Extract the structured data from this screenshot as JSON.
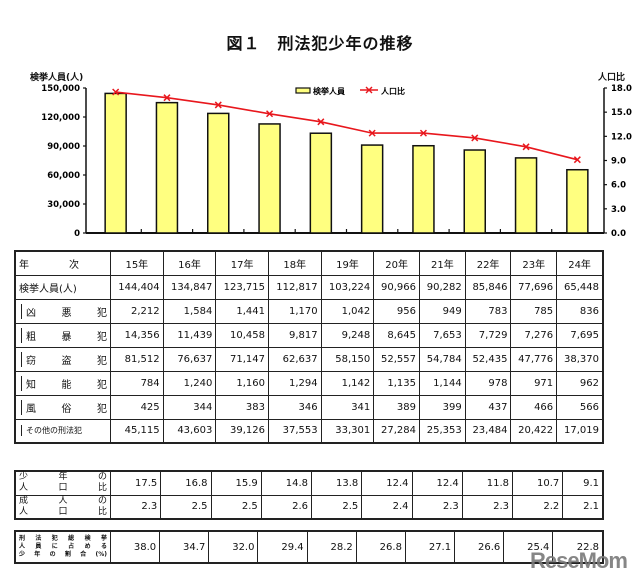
{
  "title": "図１　刑法犯少年の推移",
  "axes": {
    "left_label": "検挙人員(人)",
    "right_label": "人口比",
    "left_ticks": [
      "150,000",
      "120,000",
      "90,000",
      "60,000",
      "30,000",
      "0"
    ],
    "right_ticks": [
      "18.0",
      "15.0",
      "12.0",
      "9.0",
      "6.0",
      "3.0",
      "0.0"
    ]
  },
  "legend": {
    "bar_label": "検挙人員",
    "line_label": "人口比"
  },
  "colors": {
    "bar_fill": "#FFFF80",
    "bar_stroke": "#111111",
    "line": "#E8171D"
  },
  "chart_data": {
    "type": "bar",
    "title": "図１　刑法犯少年の推移",
    "categories": [
      "15年",
      "16年",
      "17年",
      "18年",
      "19年",
      "20年",
      "21年",
      "22年",
      "23年",
      "24年"
    ],
    "series": [
      {
        "name": "検挙人員",
        "type": "bar",
        "axis": "left",
        "values": [
          144404,
          134847,
          123715,
          112817,
          103224,
          90966,
          90282,
          85846,
          77696,
          65448
        ]
      },
      {
        "name": "人口比",
        "type": "line",
        "axis": "right",
        "values": [
          17.5,
          16.8,
          15.9,
          14.8,
          13.8,
          12.4,
          12.4,
          11.8,
          10.7,
          9.1
        ]
      }
    ],
    "xlabel": "",
    "ylabel": "検挙人員(人)",
    "y2label": "人口比",
    "ylim": [
      0,
      150000
    ],
    "y2lim": [
      0,
      18
    ],
    "legend_position": "top-center",
    "grid": false
  },
  "table": {
    "header_label": "年　　　　次",
    "years": [
      "15年",
      "16年",
      "17年",
      "18年",
      "19年",
      "20年",
      "21年",
      "22年",
      "23年",
      "24年"
    ],
    "rows": [
      {
        "label": "検挙人員(人)",
        "values": [
          "144,404",
          "134,847",
          "123,715",
          "112,817",
          "103,224",
          "90,966",
          "90,282",
          "85,846",
          "77,696",
          "65,448"
        ]
      },
      {
        "label": [
          "凶",
          "悪",
          "犯"
        ],
        "values": [
          "2,212",
          "1,584",
          "1,441",
          "1,170",
          "1,042",
          "956",
          "949",
          "783",
          "785",
          "836"
        ]
      },
      {
        "label": [
          "粗",
          "暴",
          "犯"
        ],
        "values": [
          "14,356",
          "11,439",
          "10,458",
          "9,817",
          "9,248",
          "8,645",
          "7,653",
          "7,729",
          "7,276",
          "7,695"
        ]
      },
      {
        "label": [
          "窃",
          "盗",
          "犯"
        ],
        "values": [
          "81,512",
          "76,637",
          "71,147",
          "62,637",
          "58,150",
          "52,557",
          "54,784",
          "52,435",
          "47,776",
          "38,370"
        ]
      },
      {
        "label": [
          "知",
          "能",
          "犯"
        ],
        "values": [
          "784",
          "1,240",
          "1,160",
          "1,294",
          "1,142",
          "1,135",
          "1,144",
          "978",
          "971",
          "962"
        ]
      },
      {
        "label": [
          "風",
          "俗",
          "犯"
        ],
        "values": [
          "425",
          "344",
          "383",
          "346",
          "341",
          "389",
          "399",
          "437",
          "466",
          "566"
        ]
      },
      {
        "label": "その他の刑法犯",
        "values": [
          "45,115",
          "43,603",
          "39,126",
          "37,553",
          "33,301",
          "27,284",
          "25,353",
          "23,484",
          "20,422",
          "17,019"
        ]
      }
    ]
  },
  "ratio_table": {
    "rows": [
      {
        "label_line1": [
          "少",
          "年",
          "の"
        ],
        "label_line2": [
          "人",
          "口",
          "比"
        ],
        "values": [
          "17.5",
          "16.8",
          "15.9",
          "14.8",
          "13.8",
          "12.4",
          "12.4",
          "11.8",
          "10.7",
          "9.1"
        ]
      },
      {
        "label_line1": [
          "成",
          "人",
          "の"
        ],
        "label_line2": [
          "人",
          "口",
          "比"
        ],
        "values": [
          "2.3",
          "2.5",
          "2.5",
          "2.6",
          "2.5",
          "2.4",
          "2.3",
          "2.3",
          "2.2",
          "2.1"
        ]
      }
    ]
  },
  "share_table": {
    "label_lines": [
      [
        "刑",
        "法",
        "犯",
        "総",
        "検",
        "挙"
      ],
      [
        "人",
        "員",
        "に",
        "占",
        "め",
        "る"
      ],
      [
        "少",
        "年",
        "の",
        "割",
        "合",
        "(%)"
      ]
    ],
    "values": [
      "38.0",
      "34.7",
      "32.0",
      "29.4",
      "28.2",
      "26.8",
      "27.1",
      "26.6",
      "25.4",
      "22.8"
    ]
  },
  "watermark": "ReseMom"
}
